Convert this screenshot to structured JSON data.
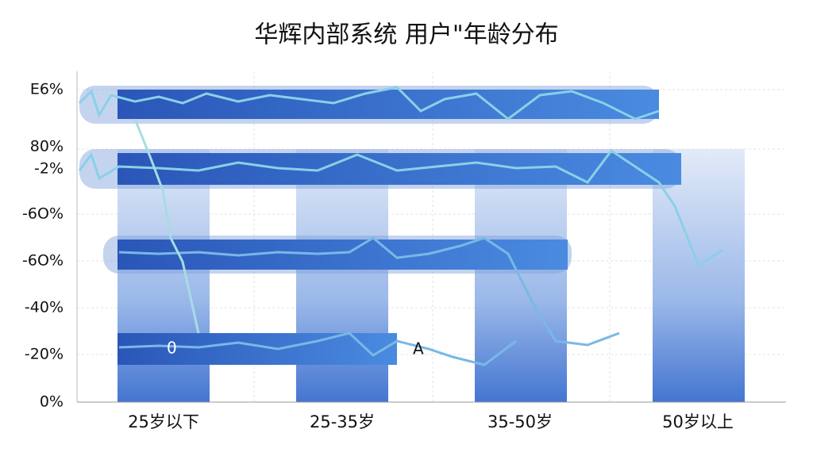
{
  "header": {
    "title": "华辉内部系统 用户\"年龄分布"
  },
  "y_axis_labels": [
    "Ε6%",
    "80%",
    "-2%",
    "-6О%",
    "-6О%",
    "-40%",
    "-20%",
    "0%"
  ],
  "categories": [
    "25岁以下",
    "25-35岁",
    "35-50岁",
    "50岁以上"
  ],
  "annotations": [
    "0",
    "A"
  ]
}
